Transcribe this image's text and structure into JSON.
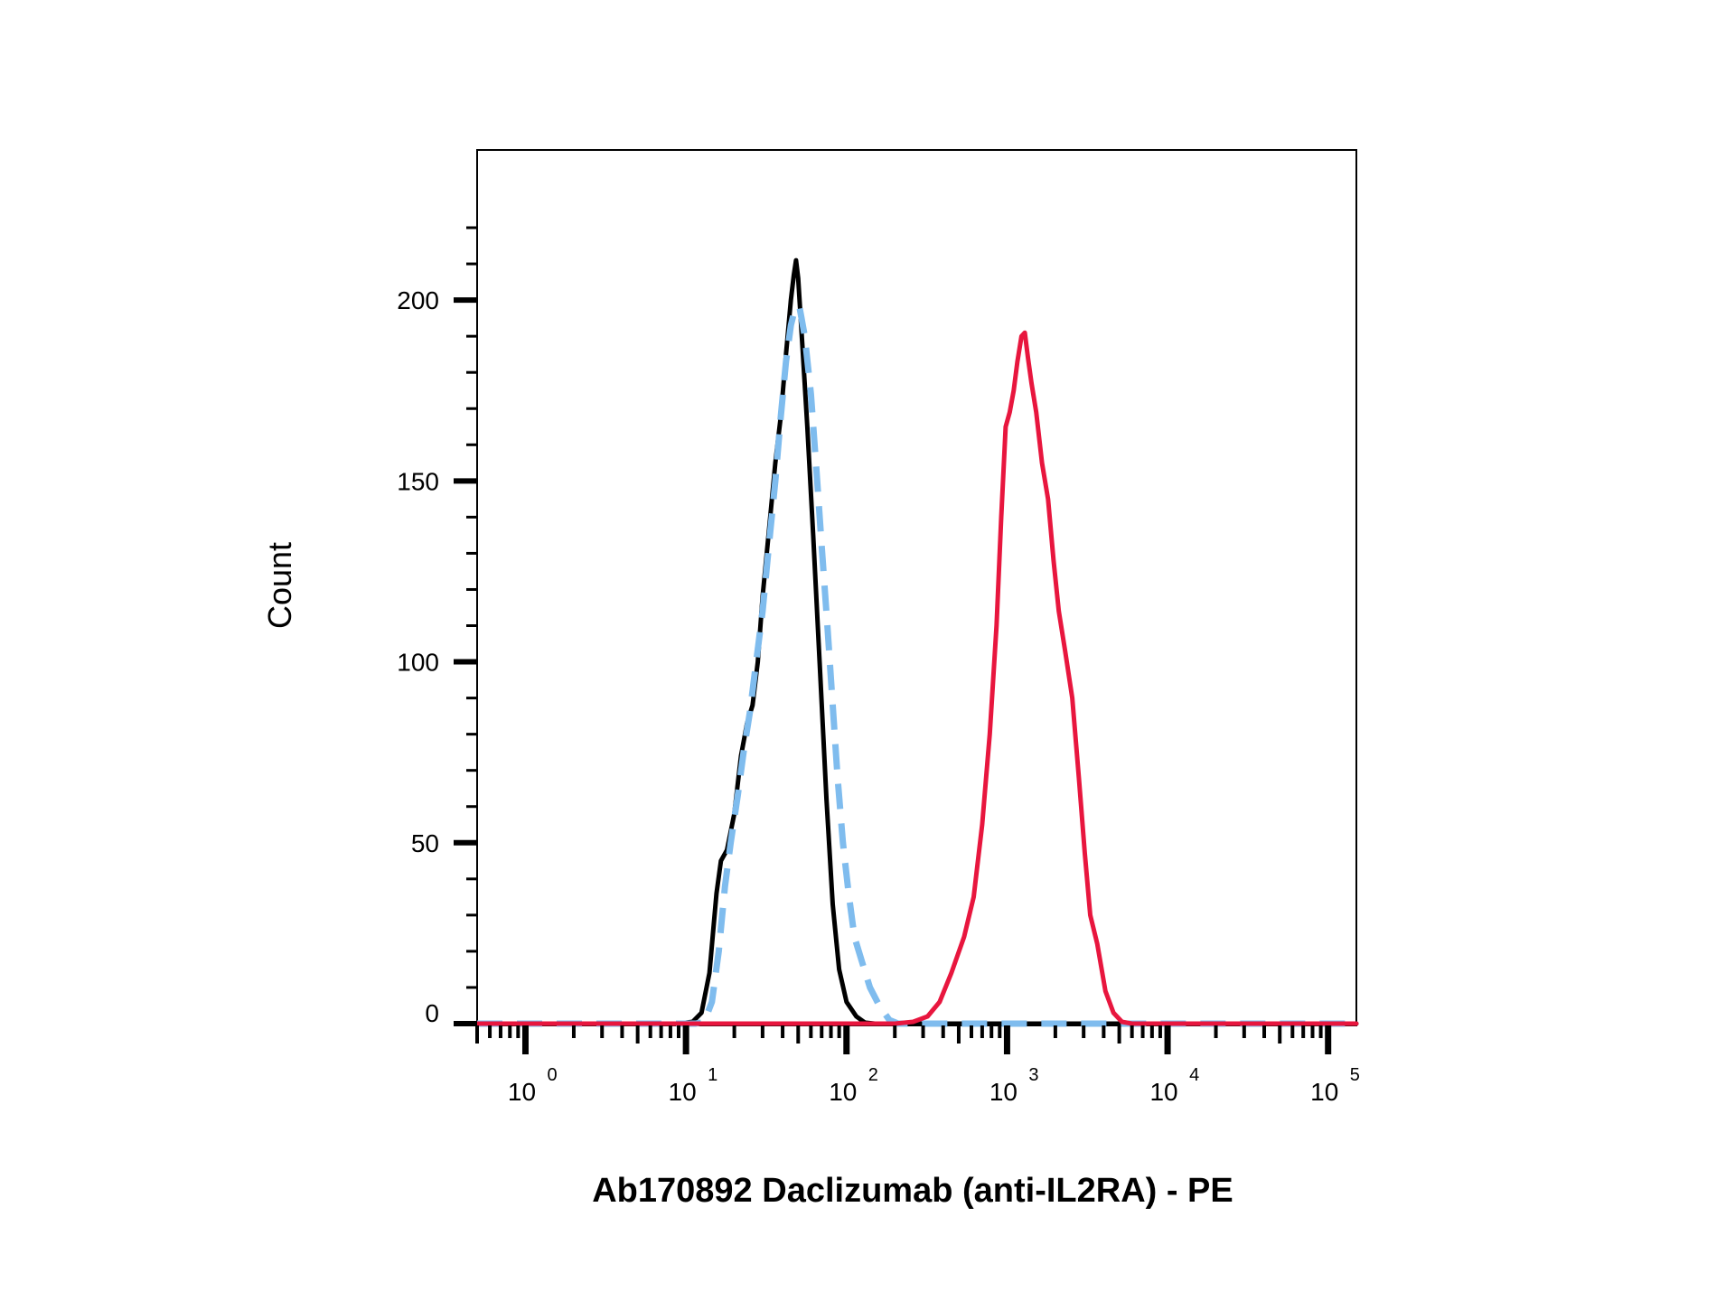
{
  "chart_data": {
    "type": "line",
    "xlabel": "Ab170892 Daclizumab (anti-IL2RA) - PE",
    "ylabel": "Count",
    "xscale": "log",
    "xlim": [
      0.5,
      150000
    ],
    "ylim": [
      0,
      225
    ],
    "grid": false,
    "legend": "none",
    "x_ticks": [
      {
        "value": 1,
        "base": "10",
        "exp": "0"
      },
      {
        "value": 10,
        "base": "10",
        "exp": "1"
      },
      {
        "value": 100,
        "base": "10",
        "exp": "2"
      },
      {
        "value": 1000,
        "base": "10",
        "exp": "3"
      },
      {
        "value": 10000,
        "base": "10",
        "exp": "4"
      },
      {
        "value": 100000,
        "base": "10",
        "exp": "5"
      }
    ],
    "y_ticks": [
      0,
      50,
      100,
      150,
      200
    ],
    "y_tick_labels": [
      "0",
      "50",
      "100",
      "150",
      "200"
    ],
    "series": [
      {
        "color": "#000000",
        "style": "solid",
        "points": [
          [
            0.5,
            0
          ],
          [
            9,
            0
          ],
          [
            11,
            0.5
          ],
          [
            12.5,
            3
          ],
          [
            14,
            14
          ],
          [
            15.5,
            36
          ],
          [
            16.5,
            45
          ],
          [
            18,
            48
          ],
          [
            20,
            58
          ],
          [
            22,
            74
          ],
          [
            24,
            83
          ],
          [
            26,
            88
          ],
          [
            28,
            100
          ],
          [
            30,
            118
          ],
          [
            33,
            137
          ],
          [
            36,
            155
          ],
          [
            39,
            168
          ],
          [
            42,
            185
          ],
          [
            45,
            200
          ],
          [
            47,
            207
          ],
          [
            48.5,
            211
          ],
          [
            50,
            206
          ],
          [
            53,
            188
          ],
          [
            57,
            165
          ],
          [
            62,
            135
          ],
          [
            68,
            100
          ],
          [
            75,
            62
          ],
          [
            82,
            33
          ],
          [
            90,
            15
          ],
          [
            100,
            6
          ],
          [
            115,
            2
          ],
          [
            130,
            0.3
          ],
          [
            150,
            0
          ],
          [
            150000,
            0
          ]
        ]
      },
      {
        "color": "#7fbcee",
        "style": "dashed",
        "points": [
          [
            0.5,
            0
          ],
          [
            11.5,
            0
          ],
          [
            13,
            0.5
          ],
          [
            14.5,
            6
          ],
          [
            16,
            20
          ],
          [
            17.5,
            38
          ],
          [
            19,
            50
          ],
          [
            21,
            63
          ],
          [
            23,
            76
          ],
          [
            25,
            86
          ],
          [
            27,
            98
          ],
          [
            30,
            114
          ],
          [
            33,
            133
          ],
          [
            36,
            150
          ],
          [
            39,
            168
          ],
          [
            42,
            183
          ],
          [
            45,
            193
          ],
          [
            48,
            198
          ],
          [
            51,
            198
          ],
          [
            55,
            190
          ],
          [
            60,
            174
          ],
          [
            65,
            153
          ],
          [
            70,
            132
          ],
          [
            76,
            110
          ],
          [
            82,
            88
          ],
          [
            88,
            68
          ],
          [
            95,
            50
          ],
          [
            103,
            36
          ],
          [
            112,
            24
          ],
          [
            125,
            17
          ],
          [
            140,
            10
          ],
          [
            160,
            5
          ],
          [
            185,
            1
          ],
          [
            210,
            0
          ],
          [
            150000,
            0
          ]
        ]
      },
      {
        "color": "#e8163e",
        "style": "solid",
        "points": [
          [
            0.5,
            0
          ],
          [
            200,
            0
          ],
          [
            260,
            0.5
          ],
          [
            320,
            2
          ],
          [
            380,
            6
          ],
          [
            450,
            14
          ],
          [
            540,
            24
          ],
          [
            620,
            35
          ],
          [
            700,
            55
          ],
          [
            780,
            80
          ],
          [
            860,
            110
          ],
          [
            920,
            140
          ],
          [
            980,
            165
          ],
          [
            1040,
            169
          ],
          [
            1100,
            175
          ],
          [
            1160,
            183
          ],
          [
            1230,
            190
          ],
          [
            1290,
            191
          ],
          [
            1350,
            184
          ],
          [
            1420,
            177
          ],
          [
            1520,
            169
          ],
          [
            1650,
            155
          ],
          [
            1800,
            145
          ],
          [
            1950,
            128
          ],
          [
            2100,
            114
          ],
          [
            2300,
            103
          ],
          [
            2550,
            90
          ],
          [
            2800,
            68
          ],
          [
            3050,
            47
          ],
          [
            3300,
            30
          ],
          [
            3650,
            22
          ],
          [
            4100,
            9
          ],
          [
            4600,
            3
          ],
          [
            5200,
            0.5
          ],
          [
            6000,
            0
          ],
          [
            150000,
            0
          ]
        ]
      }
    ]
  }
}
